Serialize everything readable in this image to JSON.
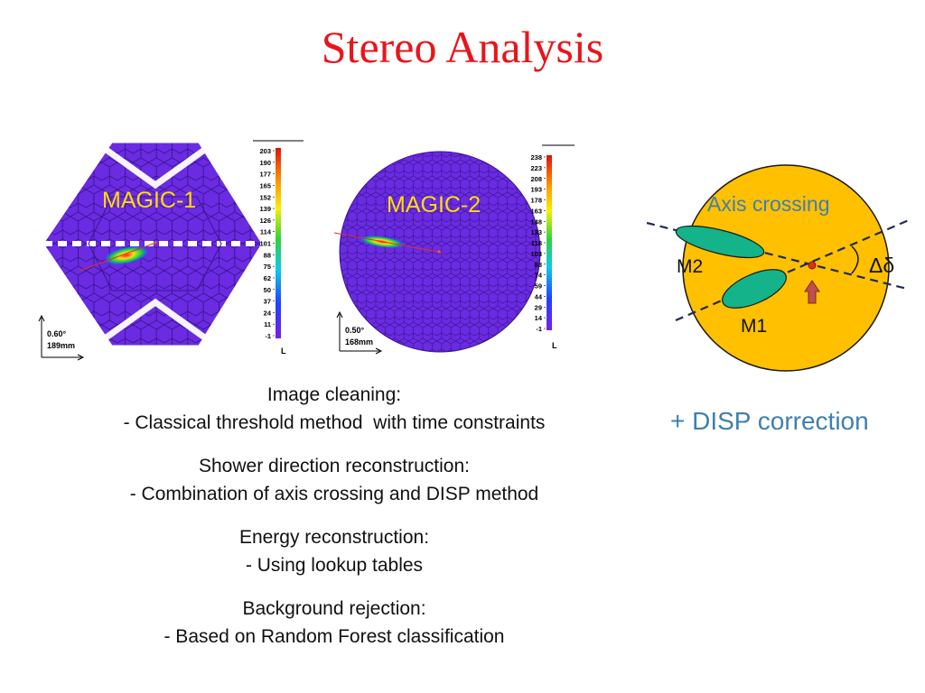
{
  "title": "Stereo Analysis",
  "magic1": {
    "label": "MAGIC-1",
    "scale_angle": "0.60°",
    "scale_mm": "189mm",
    "colorbar_ticks": [
      "203",
      "190",
      "177",
      "165",
      "152",
      "139",
      "126",
      "114",
      "101",
      "88",
      "75",
      "62",
      "50",
      "37",
      "24",
      "11",
      "-1"
    ],
    "colorbar_unit": "L"
  },
  "magic2": {
    "label": "MAGIC-2",
    "scale_angle": "0.50°",
    "scale_mm": "168mm",
    "colorbar_ticks": [
      "238",
      "223",
      "208",
      "193",
      "178",
      "163",
      "148",
      "133",
      "118",
      "103",
      "88",
      "74",
      "59",
      "44",
      "29",
      "14",
      "-1"
    ],
    "colorbar_unit": "L"
  },
  "diagram": {
    "title": "Axis crossing",
    "label_m2": "M2",
    "label_m1": "M1",
    "label_delta": "Δδ",
    "colors": {
      "disk": "#ffc000",
      "ellipse": "#14b38a",
      "axis_line": "#1f2a5c",
      "arrow": "#c0504d"
    }
  },
  "disp_note": "+ DISP correction",
  "sections": [
    {
      "heading": "Image cleaning:",
      "detail": "- Classical threshold method  with time constraints"
    },
    {
      "heading": "Shower direction reconstruction:",
      "detail": "- Combination of axis crossing and DISP method"
    },
    {
      "heading": "Energy reconstruction:",
      "detail": "- Using lookup tables"
    },
    {
      "heading": "Background rejection:",
      "detail": "- Based on Random Forest classification"
    }
  ],
  "colors": {
    "title": "#e8151b",
    "camera_fill": "#6a2be2",
    "disp_note": "#3f7fae"
  }
}
